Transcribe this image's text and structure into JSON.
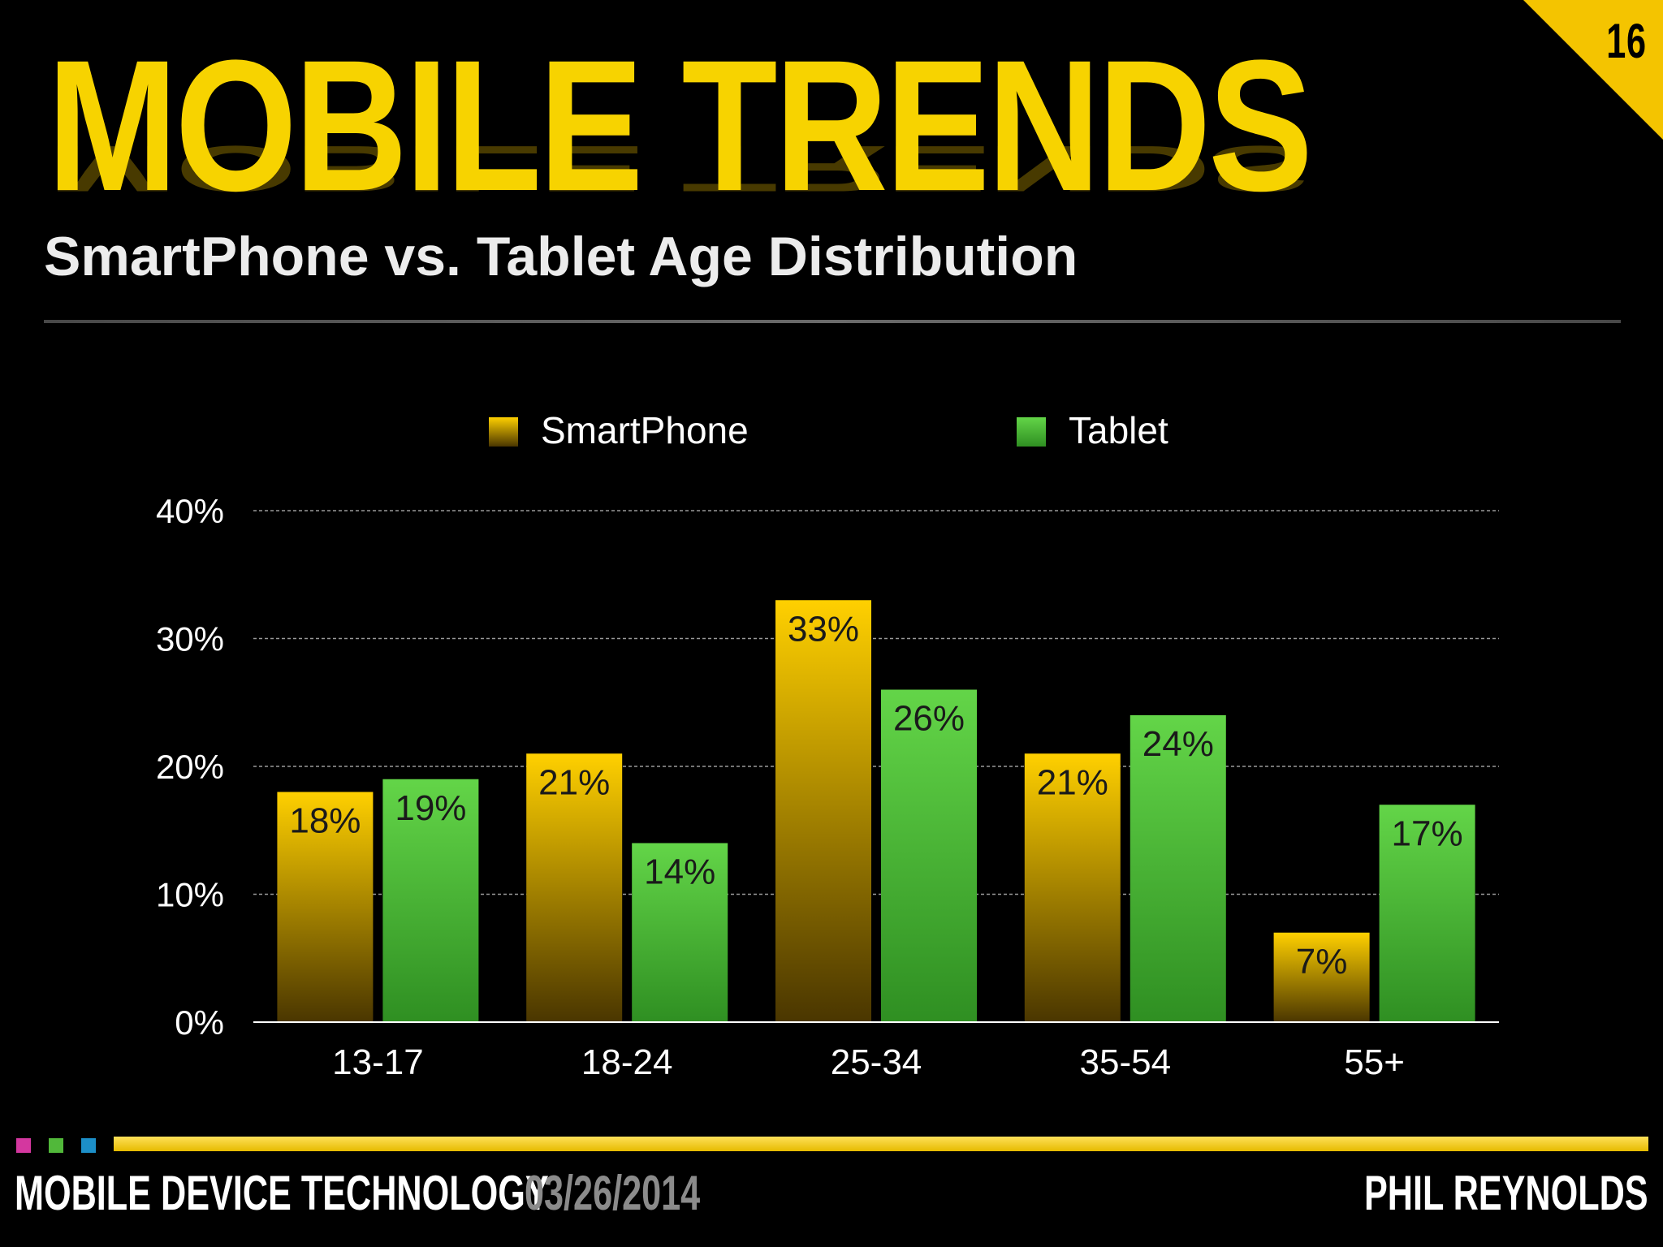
{
  "slide": {
    "number": "16",
    "title": "MOBILE TRENDS",
    "subtitle": "SmartPhone vs. Tablet Age Distribution"
  },
  "footer": {
    "left": "MOBILE DEVICE TECHNOLOGY",
    "date": "03/26/2014",
    "right": "PHIL REYNOLDS",
    "square_colors": [
      "#d4379f",
      "#51b83a",
      "#1c8fc8"
    ]
  },
  "colors": {
    "accent": "#f7d300",
    "smartphone": "#e0b500",
    "tablet": "#50c43a",
    "background": "#000000"
  },
  "chart_data": {
    "type": "bar",
    "categories": [
      "13-17",
      "18-24",
      "25-34",
      "35-54",
      "55+"
    ],
    "series": [
      {
        "name": "SmartPhone",
        "values": [
          18,
          21,
          33,
          21,
          7
        ],
        "labels": [
          "18%",
          "21%",
          "33%",
          "21%",
          "7%"
        ]
      },
      {
        "name": "Tablet",
        "values": [
          19,
          14,
          26,
          24,
          17
        ],
        "labels": [
          "19%",
          "14%",
          "26%",
          "24%",
          "17%"
        ]
      }
    ],
    "yticks": [
      "0%",
      "10%",
      "20%",
      "30%",
      "40%"
    ],
    "ylim": [
      0,
      40
    ],
    "grid": true,
    "legend": "top-center",
    "title": "",
    "xlabel": "",
    "ylabel": ""
  }
}
